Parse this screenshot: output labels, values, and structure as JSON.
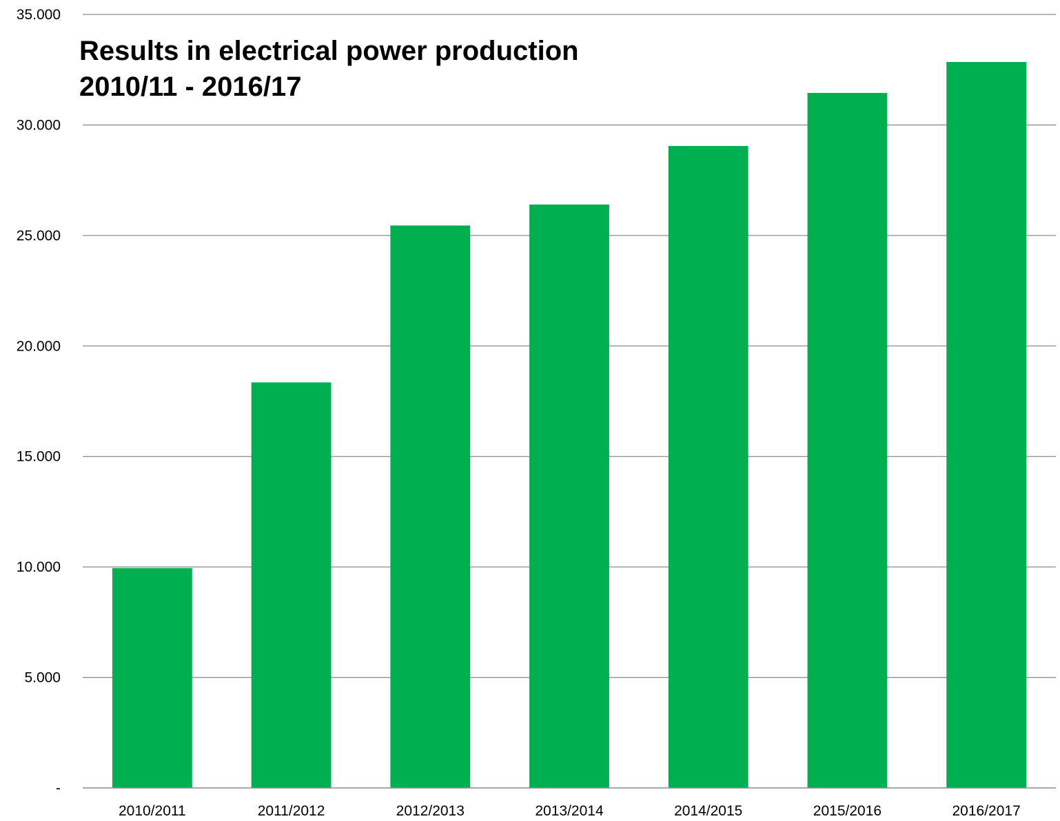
{
  "chart_data": {
    "type": "bar",
    "title_lines": [
      "Results in electrical power production",
      "2010/11 - 2016/17"
    ],
    "xlabel": "",
    "ylabel": "",
    "categories": [
      "2010/2011",
      "2011/2012",
      "2012/2013",
      "2013/2014",
      "2014/2015",
      "2015/2016",
      "2016/2017"
    ],
    "values": [
      9950,
      18350,
      25450,
      26400,
      29050,
      31450,
      32850
    ],
    "ylim": [
      0,
      35000
    ],
    "yticks": [
      0,
      5000,
      10000,
      15000,
      20000,
      25000,
      30000,
      35000
    ],
    "ytick_labels": [
      "-",
      "5.000",
      "10.000",
      "15.000",
      "20.000",
      "25.000",
      "30.000",
      "35.000"
    ],
    "grid": true,
    "legend": "none",
    "bar_color": "#00B050",
    "gridline_color": "#8C8C8C"
  }
}
